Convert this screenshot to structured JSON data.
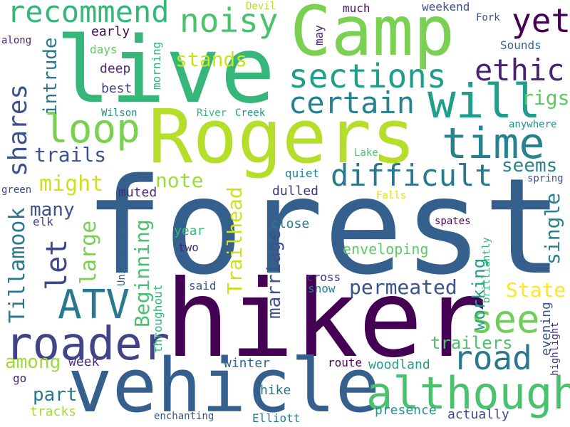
{
  "words": [
    {
      "text": "forest",
      "color": "#355f8d"
    },
    {
      "text": "hiker",
      "color": "#440154"
    },
    {
      "text": "live",
      "color": "#35b779"
    },
    {
      "text": "Camp",
      "color": "#7ad151"
    },
    {
      "text": "Rogers",
      "color": "#b5de2b"
    },
    {
      "text": "vehicle",
      "color": "#355f8d"
    },
    {
      "text": "although",
      "color": "#4ac16d"
    },
    {
      "text": "roader",
      "color": "#414487"
    },
    {
      "text": "ATV",
      "color": "#2a788e"
    },
    {
      "text": "recommend",
      "color": "#35b779"
    },
    {
      "text": "noisy",
      "color": "#4ac16d"
    },
    {
      "text": "sections",
      "color": "#1f9e89"
    },
    {
      "text": "certain",
      "color": "#26828e"
    },
    {
      "text": "will",
      "color": "#1f9e89"
    },
    {
      "text": "time",
      "color": "#26828e"
    },
    {
      "text": "ethic",
      "color": "#482173"
    },
    {
      "text": "yet",
      "color": "#440154"
    },
    {
      "text": "loop",
      "color": "#7ad151"
    },
    {
      "text": "difficult",
      "color": "#2a788e"
    },
    {
      "text": "see",
      "color": "#6ece58"
    },
    {
      "text": "road",
      "color": "#2a788e"
    },
    {
      "text": "shares",
      "color": "#3b528b"
    },
    {
      "text": "let",
      "color": "#3e4989"
    },
    {
      "text": "Tillamook",
      "color": "#2a788e"
    },
    {
      "text": "part",
      "color": "#2a788e"
    },
    {
      "text": "among",
      "color": "#a0da39"
    },
    {
      "text": "trails",
      "color": "#3b528b"
    },
    {
      "text": "might",
      "color": "#d0e11c"
    },
    {
      "text": "many",
      "color": "#3b528b"
    },
    {
      "text": "note",
      "color": "#a0da39"
    },
    {
      "text": "stands",
      "color": "#d0e11c"
    },
    {
      "text": "large",
      "color": "#7ad151"
    },
    {
      "text": "intrude",
      "color": "#2a788e"
    },
    {
      "text": "Beginning",
      "color": "#4ac16d"
    },
    {
      "text": "Trailhead",
      "color": "#d0e11c"
    },
    {
      "text": "marriage",
      "color": "#3b528b"
    },
    {
      "text": "permeated",
      "color": "#3b528b"
    },
    {
      "text": "working",
      "color": "#20a486"
    },
    {
      "text": "State",
      "color": "#fde725"
    },
    {
      "text": "single",
      "color": "#26828e"
    },
    {
      "text": "seems",
      "color": "#26828e"
    },
    {
      "text": "rigs",
      "color": "#5ec962"
    },
    {
      "text": "trailers",
      "color": "#4ac16d"
    },
    {
      "text": "enveloping",
      "color": "#5ec962"
    },
    {
      "text": "woodland",
      "color": "#1f9e89"
    },
    {
      "text": "presence",
      "color": "#21918c"
    },
    {
      "text": "actually",
      "color": "#3e4989"
    },
    {
      "text": "tracks",
      "color": "#a0da39"
    },
    {
      "text": "hike",
      "color": "#2a788e"
    },
    {
      "text": "winter",
      "color": "#31688e"
    },
    {
      "text": "Elliott",
      "color": "#2a788e"
    },
    {
      "text": "enchanting",
      "color": "#3b528b"
    },
    {
      "text": "route",
      "color": "#440154"
    },
    {
      "text": "go",
      "color": "#482173"
    },
    {
      "text": "week",
      "color": "#46337e"
    },
    {
      "text": "said",
      "color": "#3b528b"
    },
    {
      "text": "snow",
      "color": "#26828e"
    },
    {
      "text": "cross",
      "color": "#46337e"
    },
    {
      "text": "close",
      "color": "#2a788e"
    },
    {
      "text": "dulled",
      "color": "#46337e"
    },
    {
      "text": "muted",
      "color": "#482878"
    },
    {
      "text": "year",
      "color": "#35b779"
    },
    {
      "text": "two",
      "color": "#482878"
    },
    {
      "text": "elk",
      "color": "#414487"
    },
    {
      "text": "green",
      "color": "#3e4989"
    },
    {
      "text": "along",
      "color": "#482173"
    },
    {
      "text": "early",
      "color": "#440154"
    },
    {
      "text": "days",
      "color": "#5ec962"
    },
    {
      "text": "deep",
      "color": "#482878"
    },
    {
      "text": "best",
      "color": "#414487"
    },
    {
      "text": "Wilson",
      "color": "#21918c"
    },
    {
      "text": "morning",
      "color": "#35b779"
    },
    {
      "text": "River",
      "color": "#35b779"
    },
    {
      "text": "Creek",
      "color": "#21918c"
    },
    {
      "text": "Devil",
      "color": "#b5de2b"
    },
    {
      "text": "much",
      "color": "#471164"
    },
    {
      "text": "may",
      "color": "#482878"
    },
    {
      "text": "weekend",
      "color": "#3b528b"
    },
    {
      "text": "Fork",
      "color": "#3b528b"
    },
    {
      "text": "Sounds",
      "color": "#31688e"
    },
    {
      "text": "anywhere",
      "color": "#21918c"
    },
    {
      "text": "Lake",
      "color": "#4ac16d"
    },
    {
      "text": "quiet",
      "color": "#26828e"
    },
    {
      "text": "spring",
      "color": "#3b528b"
    },
    {
      "text": "Falls",
      "color": "#dde318"
    },
    {
      "text": "spates",
      "color": "#440154"
    },
    {
      "text": "brilliantly",
      "color": "#35b779"
    },
    {
      "text": "University",
      "color": "#31688e"
    },
    {
      "text": "throughout",
      "color": "#35b779"
    },
    {
      "text": "evening",
      "color": "#3b528b"
    },
    {
      "text": "highlight",
      "color": "#46337e"
    }
  ]
}
